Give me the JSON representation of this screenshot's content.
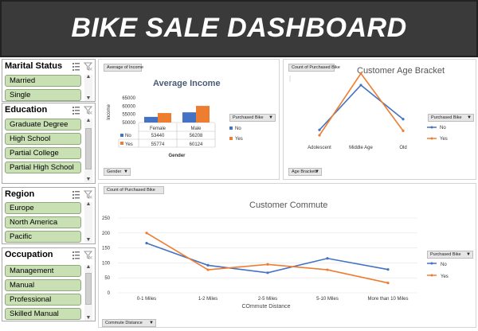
{
  "header": {
    "title": "BIKE SALE DASHBOARD"
  },
  "colors": {
    "series_no": "#4472c4",
    "series_yes": "#ed7d31",
    "slicer_item": "#c9dfb4",
    "header_bg": "#3a3a3a"
  },
  "icons": {
    "multi_select": "multi-select-icon",
    "clear_filter": "clear-filter-icon"
  },
  "slicers": {
    "marital_status": {
      "title": "Marital Status",
      "items": [
        "Married",
        "Single"
      ]
    },
    "education": {
      "title": "Education",
      "items": [
        "Graduate Degree",
        "High School",
        "Partial College",
        "Partial High School"
      ]
    },
    "region": {
      "title": "Region",
      "items": [
        "Europe",
        "North America",
        "Pacific"
      ]
    },
    "occupation": {
      "title": "Occupation",
      "items": [
        "Management",
        "Manual",
        "Professional",
        "Skilled Manual"
      ]
    }
  },
  "avg_income": {
    "field_value": "Average of Income",
    "field_axis": "Gender",
    "field_legend": "Purchased Bike",
    "ylabel": "Income",
    "ticks": [
      "65000",
      "60000",
      "55000",
      "50000"
    ],
    "table": {
      "header": [
        "Female",
        "Male"
      ],
      "rows": [
        {
          "label": "No",
          "values": [
            "53440",
            "56208"
          ]
        },
        {
          "label": "Yes",
          "values": [
            "55774",
            "60124"
          ]
        }
      ]
    }
  },
  "age_bracket": {
    "field_value": "Count of Purchased Bike",
    "field_axis": "Age Brackets",
    "field_legend": "Purchased Bike"
  },
  "commute": {
    "field_value": "Count of Purchased Bike",
    "field_axis": "Commute Distance",
    "field_legend": "Purchased Bike",
    "ticks": [
      "250",
      "200",
      "150",
      "100",
      "50",
      "0"
    ]
  },
  "chart_data": [
    {
      "type": "bar",
      "title": "Average Income",
      "xlabel": "Gender",
      "ylabel": "Income",
      "categories": [
        "Female",
        "Male"
      ],
      "series": [
        {
          "name": "No",
          "values": [
            53440,
            56208
          ]
        },
        {
          "name": "Yes",
          "values": [
            55774,
            60124
          ]
        }
      ],
      "ylim": [
        50000,
        65000
      ],
      "legend": "right"
    },
    {
      "type": "line",
      "title": "Customer Age Bracket",
      "categories": [
        "Adolescent",
        "Middle Age",
        "Old"
      ],
      "series": [
        {
          "name": "No",
          "values": [
            70,
            320,
            130
          ]
        },
        {
          "name": "Yes",
          "values": [
            40,
            385,
            65
          ]
        }
      ],
      "ylim": [
        0,
        400
      ],
      "legend": "right"
    },
    {
      "type": "line",
      "title": "Customer Commute",
      "xlabel": "COmmute Distance",
      "categories": [
        "0-1 Miles",
        "1-2 Miles",
        "2-5 Miles",
        "5-10 Miles",
        "More than 10 Miles"
      ],
      "series": [
        {
          "name": "No",
          "values": [
            166,
            92,
            67,
            115,
            78
          ]
        },
        {
          "name": "Yes",
          "values": [
            200,
            77,
            95,
            77,
            33
          ]
        }
      ],
      "ylim": [
        0,
        250
      ],
      "legend": "right"
    }
  ]
}
